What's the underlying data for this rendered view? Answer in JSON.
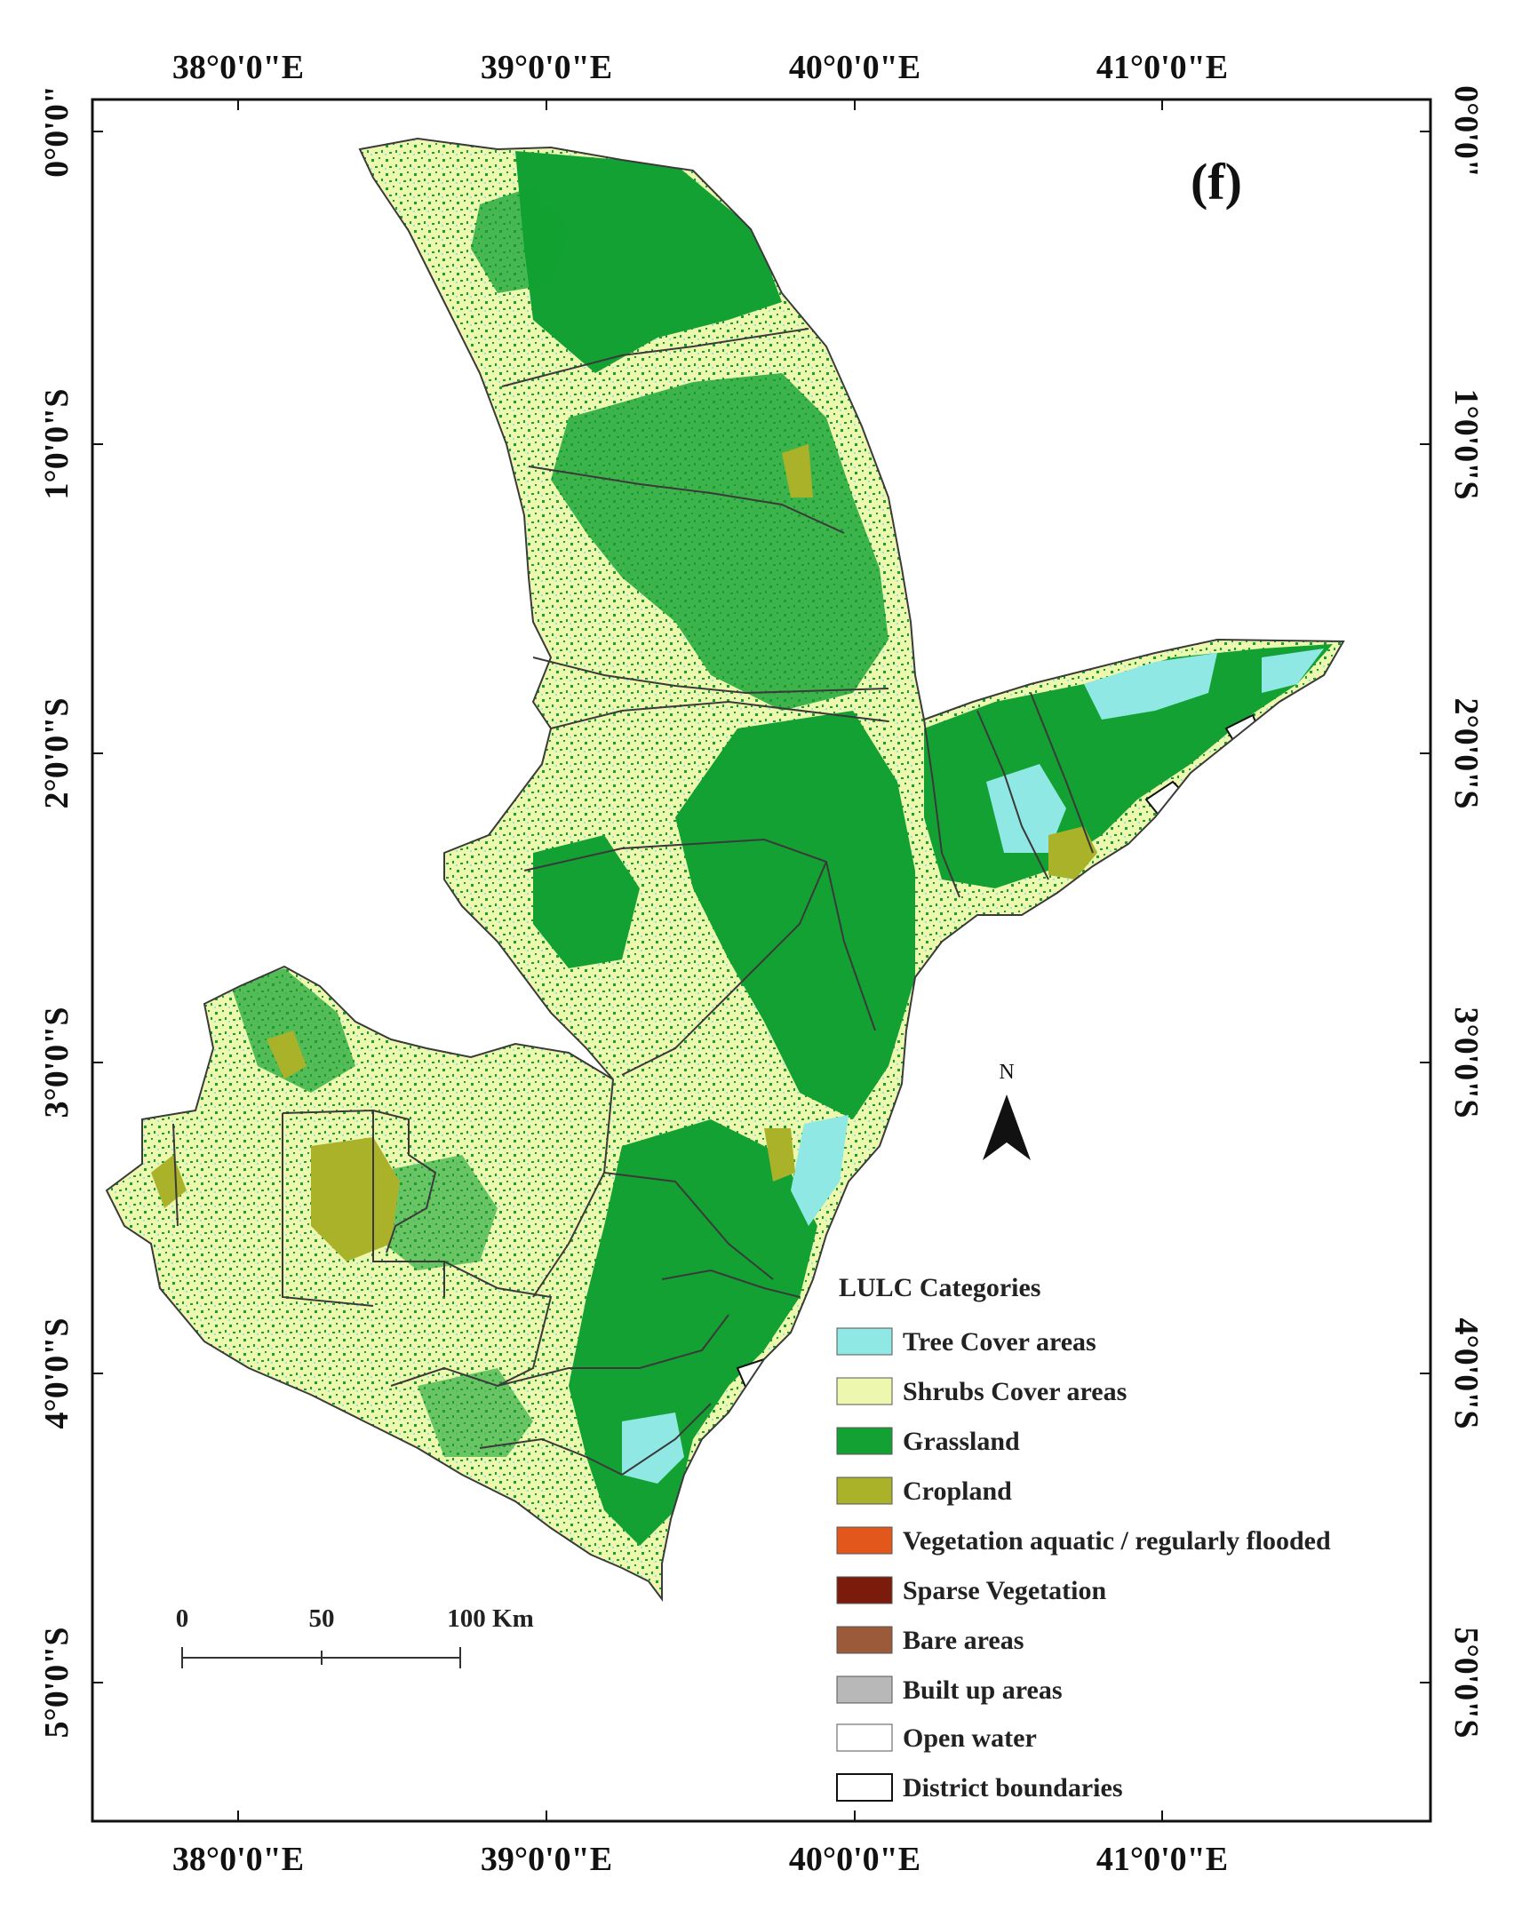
{
  "panel_label": "(f)",
  "axes": {
    "longitude_labels": [
      "38°0'0\"E",
      "39°0'0\"E",
      "40°0'0\"E",
      "41°0'0\"E"
    ],
    "latitude_labels": [
      "0°0'0\"",
      "1°0'0\"S",
      "2°0'0\"S",
      "3°0'0\"S",
      "4°0'0\"S",
      "5°0'0\"S"
    ]
  },
  "north_arrow": {
    "label": "N",
    "icon": "north-arrow-icon"
  },
  "scale_bar": {
    "labels": [
      "0",
      "50",
      "100 Km"
    ]
  },
  "legend": {
    "title": "LULC Categories",
    "items": [
      {
        "label": "Tree Cover areas",
        "color": "#8fe8e3"
      },
      {
        "label": "Shrubs Cover areas",
        "color": "#eef7ae"
      },
      {
        "label": "Grassland",
        "color": "#12a132"
      },
      {
        "label": "Cropland",
        "color": "#aab22a"
      },
      {
        "label": "Vegetation aquatic / regularly flooded",
        "color": "#e2571c"
      },
      {
        "label": "Sparse Vegetation",
        "color": "#7a1b0b"
      },
      {
        "label": "Bare areas",
        "color": "#9b5a3a"
      },
      {
        "label": "Built up areas",
        "color": "#b8b8b8"
      },
      {
        "label": "Open water",
        "color": "#ffffff"
      },
      {
        "label": "District boundaries",
        "color": "#ffffff"
      }
    ]
  },
  "colors": {
    "frame": "#111111",
    "shrub_base": "#eef7ae",
    "grassland": "#12a132",
    "tree_cover": "#8fe8e3",
    "cropland": "#aab22a",
    "district_line": "#3a3a3a"
  }
}
